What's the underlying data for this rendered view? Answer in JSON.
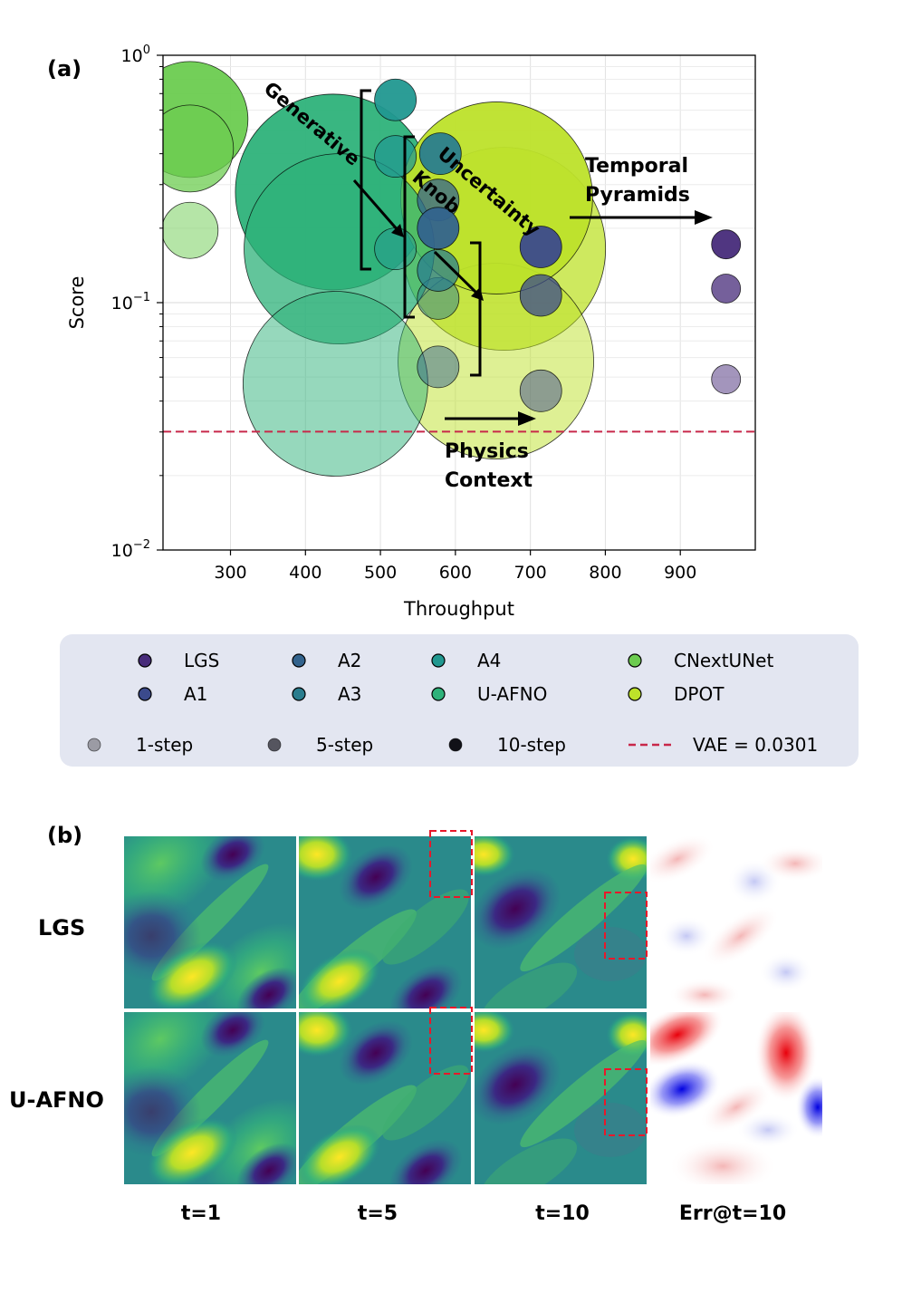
{
  "panel_a_label": "(a)",
  "panel_b_label": "(b)",
  "chart_data": {
    "type": "scatter",
    "subtype": "bubble",
    "xlabel": "Throughput",
    "ylabel": "Score",
    "xlim": [
      210,
      1000
    ],
    "ylim": [
      0.01,
      1.0
    ],
    "yscale": "log",
    "xticks": [
      300,
      400,
      500,
      600,
      700,
      800,
      900
    ],
    "yticks": [
      {
        "value": 0.01,
        "base": "10",
        "exp": "−2"
      },
      {
        "value": 0.1,
        "base": "10",
        "exp": "−1"
      },
      {
        "value": 1.0,
        "base": "10",
        "exp": "0"
      }
    ],
    "grid": true,
    "reference_line": {
      "label": "VAE = 0.0301",
      "value": 0.0301,
      "color": "#c8284a"
    },
    "series": [
      {
        "name": "CNextUNet",
        "color": "#6ccc50",
        "points": [
          {
            "step": "1-step",
            "x": 246,
            "y": 0.196,
            "r": 31
          },
          {
            "step": "5-step",
            "x": 246,
            "y": 0.42,
            "r": 48
          },
          {
            "step": "10-step",
            "x": 246,
            "y": 0.55,
            "r": 64
          }
        ]
      },
      {
        "name": "U-AFNO",
        "color": "#2eb27a",
        "points": [
          {
            "step": "1-step",
            "x": 440,
            "y": 0.047,
            "r": 102
          },
          {
            "step": "5-step",
            "x": 445,
            "y": 0.165,
            "r": 105
          },
          {
            "step": "10-step",
            "x": 437,
            "y": 0.28,
            "r": 108
          }
        ]
      },
      {
        "name": "DPOT",
        "color": "#bde22a",
        "points": [
          {
            "step": "1-step",
            "x": 654,
            "y": 0.058,
            "r": 108
          },
          {
            "step": "5-step",
            "x": 665,
            "y": 0.165,
            "r": 112
          },
          {
            "step": "10-step",
            "x": 655,
            "y": 0.265,
            "r": 106
          }
        ]
      },
      {
        "name": "A4",
        "color": "#219890",
        "points": [
          {
            "step": "1-step",
            "x": 520,
            "y": 0.165,
            "r": 23
          },
          {
            "step": "5-step",
            "x": 520,
            "y": 0.39,
            "r": 23
          },
          {
            "step": "10-step",
            "x": 520,
            "y": 0.66,
            "r": 23
          }
        ]
      },
      {
        "name": "A3",
        "color": "#2a7d8e",
        "points": [
          {
            "step": "1-step",
            "x": 577,
            "y": 0.104,
            "r": 23
          },
          {
            "step": "5-step",
            "x": 577,
            "y": 0.135,
            "r": 23
          },
          {
            "step": "10-step",
            "x": 580,
            "y": 0.4,
            "r": 23
          }
        ]
      },
      {
        "name": "A2",
        "color": "#33638d",
        "points": [
          {
            "step": "1-step",
            "x": 577,
            "y": 0.055,
            "r": 23
          },
          {
            "step": "5-step",
            "x": 577,
            "y": 0.26,
            "r": 23
          },
          {
            "step": "10-step",
            "x": 577,
            "y": 0.2,
            "r": 23
          }
        ]
      },
      {
        "name": "A1",
        "color": "#3b4a8c",
        "points": [
          {
            "step": "1-step",
            "x": 714,
            "y": 0.044,
            "r": 23
          },
          {
            "step": "5-step",
            "x": 714,
            "y": 0.107,
            "r": 23
          },
          {
            "step": "10-step",
            "x": 714,
            "y": 0.168,
            "r": 23
          }
        ]
      },
      {
        "name": "LGS",
        "color": "#472b7a",
        "points": [
          {
            "step": "1-step",
            "x": 961,
            "y": 0.049,
            "r": 16
          },
          {
            "step": "5-step",
            "x": 961,
            "y": 0.114,
            "r": 16
          },
          {
            "step": "10-step",
            "x": 961,
            "y": 0.172,
            "r": 16
          }
        ]
      }
    ],
    "step_opacity": {
      "1-step": 0.5,
      "5-step": 0.75,
      "10-step": 0.95
    },
    "annotations": {
      "generative": "Generative",
      "knob": "Knob",
      "uncertainty": "Uncertainty",
      "temporal": "Temporal",
      "pyramids": "Pyramids",
      "physics": "Physics",
      "context": "Context"
    },
    "legend": {
      "models": [
        "LGS",
        "A2",
        "A4",
        "CNextUNet",
        "A1",
        "A3",
        "U-AFNO",
        "DPOT"
      ],
      "steps": [
        "1-step",
        "5-step",
        "10-step"
      ],
      "vae_label": "VAE = 0.0301",
      "placement": "below-plot"
    }
  },
  "panel_b": {
    "row_labels": [
      "LGS",
      "U-AFNO"
    ],
    "column_labels": [
      "t=1",
      "t=5",
      "t=10",
      "Err@t=10"
    ]
  }
}
